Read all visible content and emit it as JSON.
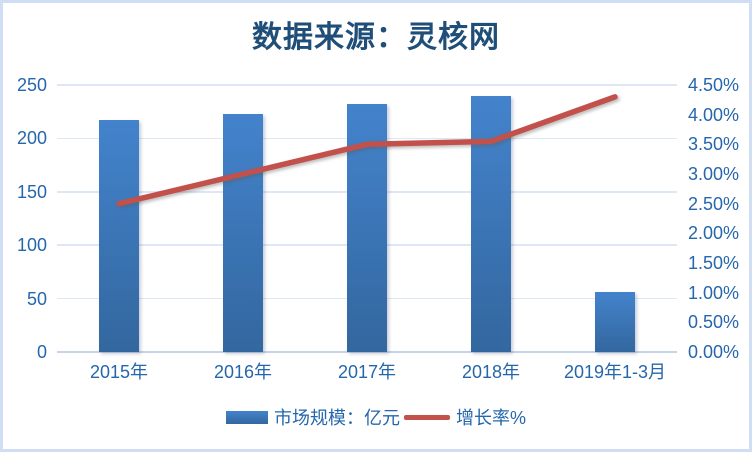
{
  "title": {
    "text": "数据来源：灵核网"
  },
  "chart_data": {
    "type": "bar",
    "subtype": "combo-bar-line",
    "title": "数据来源：灵核网",
    "categories": [
      "2015年",
      "2016年",
      "2017年",
      "2018年",
      "2019年1-3月"
    ],
    "series": [
      {
        "name": "市场规模：亿元",
        "type": "bar",
        "axis": "left",
        "color": "#3d7cc4",
        "color_top": "#4383cc",
        "color_bottom": "#33679f",
        "values": [
          217,
          223,
          232,
          240,
          56
        ]
      },
      {
        "name": "增长率%",
        "type": "line",
        "axis": "right",
        "color": "#c2504b",
        "values": [
          2.5,
          3.0,
          3.5,
          3.55,
          4.3
        ]
      }
    ],
    "left_axis": {
      "min": 0,
      "max": 250,
      "step": 50,
      "ticks": [
        "0",
        "50",
        "100",
        "150",
        "200",
        "250"
      ]
    },
    "right_axis": {
      "min": 0,
      "max": 4.5,
      "step": 0.5,
      "ticks": [
        "0.00%",
        "0.50%",
        "1.00%",
        "1.50%",
        "2.00%",
        "2.50%",
        "3.00%",
        "3.50%",
        "4.00%",
        "4.50%"
      ]
    },
    "grid": true,
    "legend_position": "bottom",
    "legend": [
      {
        "label": "市场规模：亿元",
        "swatch": "bar",
        "color": "#3d7cc4"
      },
      {
        "label": "增长率%",
        "swatch": "line",
        "color": "#c2504b"
      }
    ]
  },
  "colors": {
    "frame_border": "#cfdef2",
    "background": "#ffffff",
    "title_text": "#1f4e79",
    "axis_text": "#2566ac",
    "gridline": "#dde7f5",
    "baseline": "#c3d4ec",
    "bar_fill": "#3d7cc4",
    "line_stroke": "#c2504b"
  }
}
